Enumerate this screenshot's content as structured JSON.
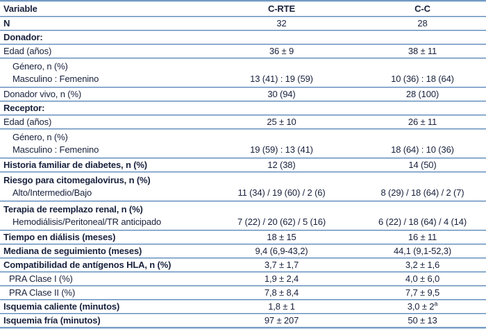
{
  "table": {
    "columns": [
      {
        "label": "Variable"
      },
      {
        "label": "C-RTE"
      },
      {
        "label": "C-C"
      }
    ],
    "rows": [
      {
        "label": "N",
        "c_rte": "32",
        "c_c": "28"
      },
      {
        "label": "Donador:",
        "c_rte": "",
        "c_c": ""
      },
      {
        "label": "Edad (años)",
        "c_rte": "36 ± 9",
        "c_c": "38 ± 11"
      },
      {
        "label": "Género, n (%)",
        "label2": "Masculino : Femenino",
        "c_rte": "13 (41) : 19 (59)",
        "c_c": "10 (36) : 18 (64)"
      },
      {
        "label": "Donador vivo, n (%)",
        "c_rte": "30 (94)",
        "c_c": "28 (100)"
      },
      {
        "label": "Receptor:",
        "c_rte": "",
        "c_c": ""
      },
      {
        "label": "Edad (años)",
        "c_rte": "25 ± 10",
        "c_c": "26 ± 11"
      },
      {
        "label": "Género, n (%)",
        "label2": "Masculino : Femenino",
        "c_rte": "19 (59) : 13 (41)",
        "c_c": "18 (64) : 10 (36)"
      },
      {
        "label": "Historia familiar de diabetes, n (%)",
        "c_rte": "12 (38)",
        "c_c": "14 (50)"
      },
      {
        "label": "Riesgo para citomegalovirus, n (%)",
        "label2": "Alto/Intermedio/Bajo",
        "c_rte": "11 (34) / 19 (60) / 2 (6)",
        "c_c": "8 (29) / 18 (64) / 2 (7)"
      },
      {
        "label": "Terapia de reemplazo renal, n (%)",
        "label2": "Hemodiálisis/Peritoneal/TR anticipado",
        "c_rte": "7 (22) / 20 (62) / 5 (16)",
        "c_c": "6 (22) / 18 (64) / 4 (14)"
      },
      {
        "label": "Tiempo en diálisis (meses)",
        "c_rte": "18 ± 15",
        "c_c": "16 ± 11"
      },
      {
        "label": "Mediana de seguimiento (meses)",
        "c_rte": "9,4 (6,9-43,2)",
        "c_c": "44,1 (9,1-52,3)"
      },
      {
        "label": "Compatibilidad de antígenos HLA, n (%)",
        "c_rte": "3,7 ± 1,7",
        "c_c": "3,2 ± 1,6"
      },
      {
        "label": "PRA Clase I (%)",
        "c_rte": "1,9 ± 2,4",
        "c_c": "4,0 ± 6,0"
      },
      {
        "label": "PRA Clase II (%)",
        "c_rte": "7,8 ± 8,4",
        "c_c": "7,7 ± 9,5"
      },
      {
        "label": "Isquemia caliente (minutos)",
        "c_rte": "1,8 ± 1",
        "c_c": "3,0 ± 2",
        "c_c_sup": "a"
      },
      {
        "label": "Isquemia fría (minutos)",
        "c_rte": "97 ± 207",
        "c_c": "50 ± 13"
      }
    ],
    "colors": {
      "rule_dark": "#5f8aba",
      "rule_light": "#bdd1e6",
      "text": "#18213d",
      "background": "#ffffff"
    }
  }
}
